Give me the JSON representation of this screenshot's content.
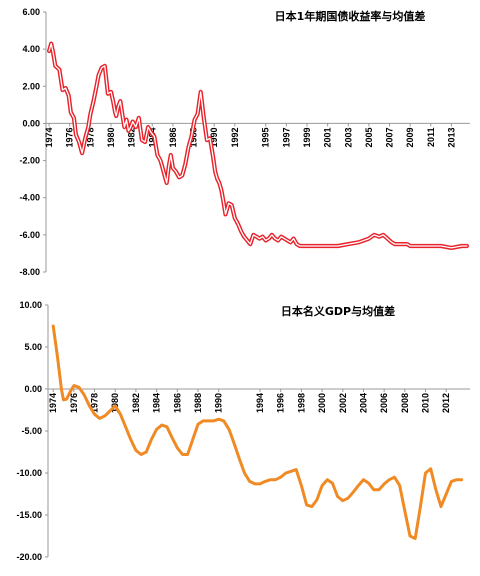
{
  "chart_data": [
    {
      "type": "line",
      "title": "日本1年期国债收益率与均值差",
      "ylim": [
        -8,
        6
      ],
      "yticks": [
        "6.00",
        "4.00",
        "2.00",
        "0.00",
        "-2.00",
        "-4.00",
        "-6.00",
        "-8.00"
      ],
      "xticks": [
        "1974",
        "1976",
        "1978",
        "1980",
        "1982",
        "1984",
        "1986",
        "1988",
        "1990",
        "1992",
        "1995",
        "1997",
        "1999",
        "2001",
        "2003",
        "2005",
        "2007",
        "2009",
        "2011",
        "2013"
      ],
      "color": "#E8232B",
      "series": [
        {
          "x": [
            1974.0,
            1974.2,
            1974.4,
            1974.6,
            1974.8,
            1975.0,
            1975.3,
            1975.6,
            1975.9,
            1976.1,
            1976.4,
            1976.6,
            1976.9,
            1977.2,
            1977.5,
            1977.8,
            1978.0,
            1978.3,
            1978.6,
            1978.8,
            1979.1,
            1979.4,
            1979.7,
            1980.0,
            1980.2,
            1980.4,
            1980.5,
            1980.7,
            1980.9,
            1981.1,
            1981.3,
            1981.5,
            1981.7,
            1981.9,
            1982.1,
            1982.4,
            1982.7,
            1983.0,
            1983.3,
            1983.6,
            1983.9,
            1984.2,
            1984.5,
            1984.8,
            1985.0,
            1985.2,
            1985.4,
            1985.6,
            1985.8,
            1986.0,
            1986.3,
            1986.6,
            1986.9,
            1987.2,
            1987.5,
            1987.8,
            1988.1,
            1988.4,
            1988.7,
            1989.0,
            1989.3,
            1989.6,
            1989.9,
            1990.1,
            1990.3,
            1990.5,
            1990.7,
            1990.9,
            1991.1,
            1991.4,
            1991.7,
            1992.0,
            1992.3,
            1992.6,
            1992.9,
            1993.2,
            1993.5,
            1993.8,
            1994.1,
            1994.4,
            1994.7,
            1995.0,
            1995.3,
            1995.6,
            1995.9,
            1996.2,
            1996.5,
            1996.8,
            1997.1,
            1997.4,
            1997.7,
            1998.0,
            1998.3,
            1998.6,
            1998.9,
            1999.2,
            1999.6,
            2000.0,
            2000.5,
            2001.0,
            2002.0,
            2003.0,
            2004.0,
            2005.0,
            2005.5,
            2006.0,
            2006.4,
            2006.8,
            2007.2,
            2007.5,
            2007.8,
            2008.1,
            2008.4,
            2008.7,
            2009.0,
            2009.5,
            2010.0,
            2011.0,
            2012.0,
            2013.0,
            2014.0,
            2014.5
          ],
          "y": [
            3.9,
            4.3,
            3.8,
            3.1,
            3.0,
            2.9,
            1.8,
            1.9,
            1.5,
            0.6,
            0.3,
            -0.6,
            -1.0,
            -1.6,
            -0.8,
            -0.2,
            0.5,
            1.2,
            2.0,
            2.6,
            3.0,
            3.1,
            1.6,
            1.7,
            1.2,
            0.6,
            0.4,
            0.9,
            1.2,
            0.5,
            -0.2,
            0.2,
            -0.4,
            -0.2,
            0.1,
            -0.2,
            0.3,
            -0.9,
            -1.0,
            -0.2,
            -0.5,
            -0.7,
            -1.7,
            -2.0,
            -2.4,
            -2.8,
            -3.2,
            -2.3,
            -1.7,
            -2.4,
            -2.6,
            -2.9,
            -2.8,
            -2.2,
            -1.3,
            -0.7,
            0.2,
            0.5,
            1.7,
            0.3,
            -0.9,
            -0.8,
            -1.8,
            -2.6,
            -3.0,
            -3.2,
            -3.6,
            -4.2,
            -4.9,
            -4.3,
            -4.4,
            -5.1,
            -5.4,
            -5.8,
            -6.1,
            -6.3,
            -6.5,
            -6.0,
            -6.1,
            -6.2,
            -6.1,
            -6.3,
            -6.2,
            -6.0,
            -6.2,
            -6.3,
            -6.1,
            -6.2,
            -6.3,
            -6.4,
            -6.2,
            -6.5,
            -6.6,
            -6.6,
            -6.6,
            -6.6,
            -6.6,
            -6.6,
            -6.6,
            -6.6,
            -6.6,
            -6.5,
            -6.4,
            -6.2,
            -6.0,
            -6.1,
            -6.0,
            -6.2,
            -6.4,
            -6.5,
            -6.5,
            -6.5,
            -6.5,
            -6.5,
            -6.6,
            -6.6,
            -6.6,
            -6.6,
            -6.6,
            -6.7,
            -6.6,
            -6.6
          ]
        }
      ]
    },
    {
      "type": "line",
      "title": "日本名义GDP与均值差",
      "ylim": [
        -20,
        10
      ],
      "yticks": [
        "10.00",
        "5.00",
        "0.00",
        "-5.00",
        "-10.00",
        "-15.00",
        "-20.00"
      ],
      "xticks": [
        "1974",
        "1976",
        "1978",
        "1980",
        "1982",
        "1984",
        "1986",
        "1988",
        "1990",
        "1994",
        "1996",
        "1998",
        "2000",
        "2002",
        "2004",
        "2006",
        "2008",
        "2010",
        "2012"
      ],
      "color": "#F08A24",
      "series": [
        {
          "x": [
            1974.0,
            1974.4,
            1974.8,
            1975.0,
            1975.3,
            1975.7,
            1976.0,
            1976.5,
            1977.0,
            1977.5,
            1978.0,
            1978.5,
            1979.0,
            1979.5,
            1980.0,
            1980.5,
            1981.0,
            1981.5,
            1982.0,
            1982.5,
            1983.0,
            1983.5,
            1984.0,
            1984.5,
            1985.0,
            1985.5,
            1986.0,
            1986.5,
            1987.0,
            1987.5,
            1988.0,
            1988.5,
            1989.0,
            1989.5,
            1990.0,
            1990.5,
            1991.0,
            1991.5,
            1992.0,
            1992.5,
            1993.0,
            1993.5,
            1994.0,
            1994.5,
            1995.0,
            1995.5,
            1996.0,
            1996.5,
            1997.0,
            1997.5,
            1998.0,
            1998.5,
            1999.0,
            1999.5,
            2000.0,
            2000.5,
            2001.0,
            2001.5,
            2002.0,
            2002.5,
            2003.0,
            2003.5,
            2004.0,
            2004.5,
            2005.0,
            2005.5,
            2006.0,
            2006.5,
            2007.0,
            2007.5,
            2008.0,
            2008.5,
            2009.0,
            2009.5,
            2010.0,
            2010.5,
            2011.0,
            2011.5,
            2012.0,
            2012.5,
            2013.0,
            2013.5
          ],
          "y": [
            7.5,
            4.0,
            0.0,
            -1.3,
            -1.2,
            -0.2,
            0.4,
            0.2,
            -0.7,
            -2.0,
            -3.0,
            -3.5,
            -3.2,
            -2.6,
            -2.0,
            -3.0,
            -4.5,
            -6.0,
            -7.3,
            -7.8,
            -7.5,
            -6.0,
            -4.8,
            -4.3,
            -4.5,
            -5.8,
            -7.0,
            -7.8,
            -7.8,
            -6.0,
            -4.2,
            -3.8,
            -3.8,
            -3.8,
            -3.6,
            -3.8,
            -4.8,
            -6.5,
            -8.3,
            -10.0,
            -11.0,
            -11.3,
            -11.3,
            -11.0,
            -10.8,
            -10.8,
            -10.5,
            -10.0,
            -9.8,
            -9.6,
            -11.5,
            -13.8,
            -14.0,
            -13.2,
            -11.5,
            -10.8,
            -11.2,
            -12.8,
            -13.3,
            -13.0,
            -12.3,
            -11.5,
            -10.8,
            -11.2,
            -12.0,
            -12.0,
            -11.3,
            -10.8,
            -10.5,
            -11.5,
            -14.5,
            -17.5,
            -17.8,
            -14.0,
            -10.0,
            -9.5,
            -12.0,
            -14.0,
            -12.5,
            -11.0,
            -10.8,
            -10.8
          ]
        }
      ]
    }
  ]
}
